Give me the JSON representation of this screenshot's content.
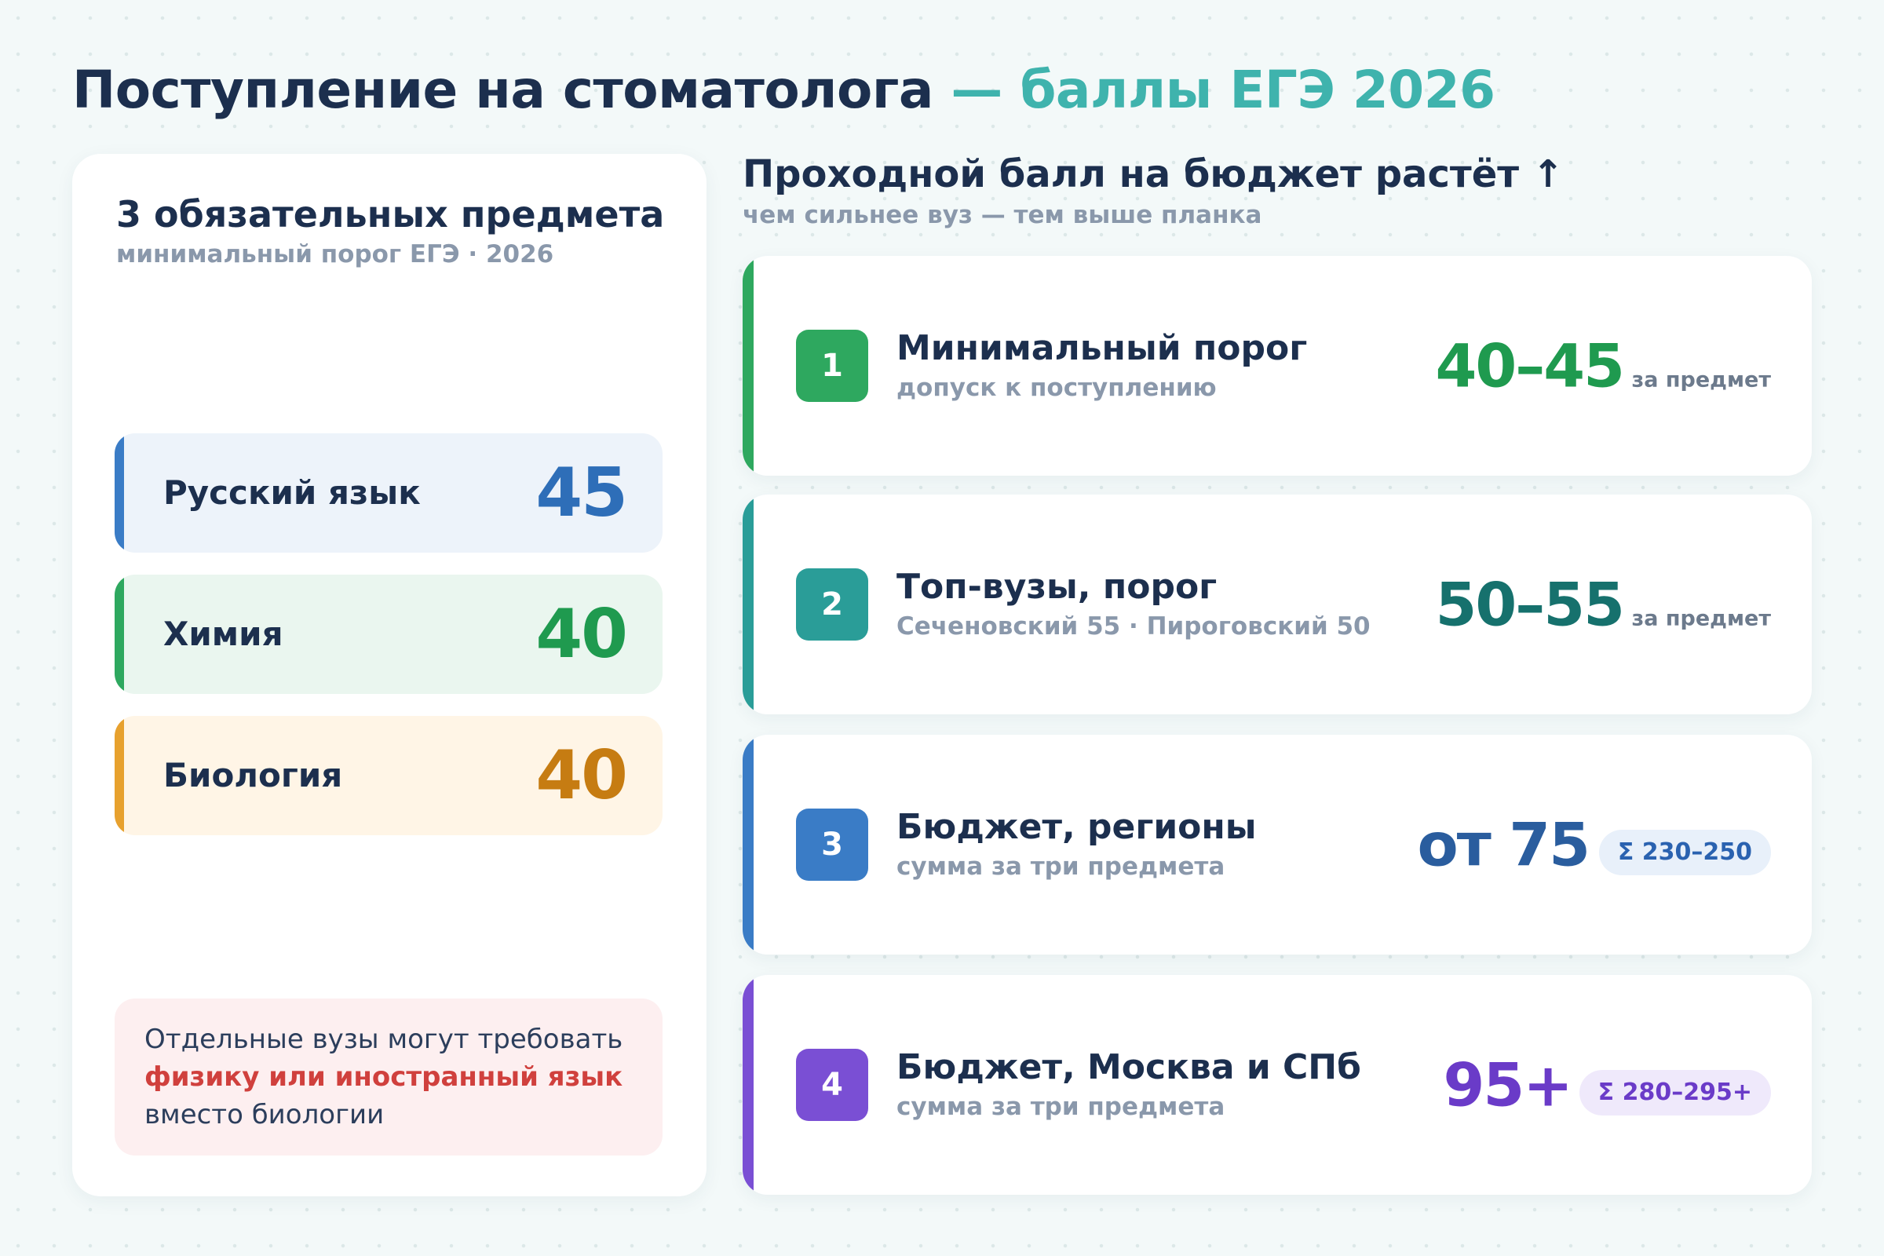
{
  "title": {
    "main": "Поступление на стоматолога",
    "accent": "— баллы ЕГЭ 2026"
  },
  "subjects_card": {
    "heading": "3 обязательных предмета",
    "subheading": "минимальный порог ЕГЭ · 2026",
    "items": [
      {
        "name": "Русский язык",
        "score": "45",
        "color": "#3a7cc6"
      },
      {
        "name": "Химия",
        "score": "40",
        "color": "#2ea85f"
      },
      {
        "name": "Биология",
        "score": "40",
        "color": "#e7a12e"
      }
    ],
    "note": {
      "before": "Отдельные вузы могут требовать",
      "highlight": "физику или иностранный язык",
      "after": "вместо биологии"
    }
  },
  "tiers_section": {
    "heading": "Проходной балл на бюджет растёт",
    "arrow": "↑",
    "subheading": "чем сильнее вуз — тем выше планка",
    "tiers": [
      {
        "num": "1",
        "name": "Минимальный порог",
        "desc": "допуск к поступлению",
        "value": "40–45",
        "unit": "за предмет",
        "color": "#2ea85f"
      },
      {
        "num": "2",
        "name": "Топ-вузы, порог",
        "desc": "Сеченовский 55 · Пироговский 50",
        "value": "50–55",
        "unit": "за предмет",
        "color": "#2a9d98"
      },
      {
        "num": "3",
        "name": "Бюджет, регионы",
        "desc": "сумма за три предмета",
        "value": "от 75",
        "sum": "Σ 230–250",
        "color": "#3a7cc6"
      },
      {
        "num": "4",
        "name": "Бюджет, Москва и СПб",
        "desc": "сумма за три предмета",
        "value": "95+",
        "sum": "Σ 280–295+",
        "color": "#7a4fd4"
      }
    ]
  }
}
